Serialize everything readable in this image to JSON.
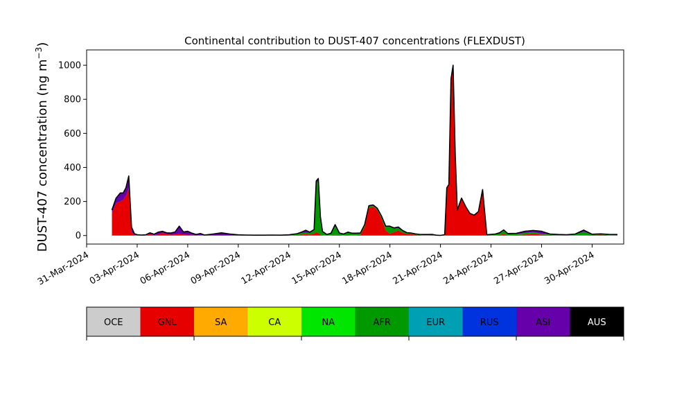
{
  "chart_data": {
    "type": "area",
    "stacked": true,
    "title": "Continental contribution to DUST-407 concentrations (FLEXDUST)",
    "ylabel": "DUST-407 concentration (ng m⁻³)",
    "ylabel_main": "DUST-407 concentration (ng m",
    "ylabel_sup": "−3",
    "ylabel_close": ")",
    "xlabel": "",
    "xlim": [
      "2024-03-31T00:00",
      "2024-05-01T21:00"
    ],
    "ylim": [
      -50,
      1090
    ],
    "yticks": [
      0,
      200,
      400,
      600,
      800,
      1000
    ],
    "xticks": [
      "2024-03-31",
      "2024-04-03",
      "2024-04-06",
      "2024-04-09",
      "2024-04-12",
      "2024-04-15",
      "2024-04-18",
      "2024-04-21",
      "2024-04-24",
      "2024-04-27",
      "2024-04-30"
    ],
    "xtick_labels": [
      "31-Mar-2024",
      "03-Apr-2024",
      "06-Apr-2024",
      "09-Apr-2024",
      "12-Apr-2024",
      "15-Apr-2024",
      "18-Apr-2024",
      "21-Apr-2024",
      "24-Apr-2024",
      "27-Apr-2024",
      "30-Apr-2024"
    ],
    "grid": false,
    "legend": "colorbar-below",
    "x": [
      "2024-04-01T12:00",
      "2024-04-01T18:00",
      "2024-04-02T00:00",
      "2024-04-02T04:00",
      "2024-04-02T08:00",
      "2024-04-02T12:00",
      "2024-04-02T16:00",
      "2024-04-02T20:00",
      "2024-04-03T00:00",
      "2024-04-03T06:00",
      "2024-04-03T12:00",
      "2024-04-03T18:00",
      "2024-04-04T00:00",
      "2024-04-04T06:00",
      "2024-04-04T12:00",
      "2024-04-04T18:00",
      "2024-04-05T00:00",
      "2024-04-05T06:00",
      "2024-04-05T12:00",
      "2024-04-05T18:00",
      "2024-04-06T00:00",
      "2024-04-06T06:00",
      "2024-04-06T12:00",
      "2024-04-06T18:00",
      "2024-04-07T00:00",
      "2024-04-07T12:00",
      "2024-04-08T00:00",
      "2024-04-08T12:00",
      "2024-04-09T00:00",
      "2024-04-09T12:00",
      "2024-04-10T00:00",
      "2024-04-10T12:00",
      "2024-04-11T00:00",
      "2024-04-11T12:00",
      "2024-04-12T00:00",
      "2024-04-12T12:00",
      "2024-04-12T18:00",
      "2024-04-13T00:00",
      "2024-04-13T06:00",
      "2024-04-13T12:00",
      "2024-04-13T15:00",
      "2024-04-13T18:00",
      "2024-04-13T21:00",
      "2024-04-14T00:00",
      "2024-04-14T06:00",
      "2024-04-14T12:00",
      "2024-04-14T18:00",
      "2024-04-15T00:00",
      "2024-04-15T06:00",
      "2024-04-15T12:00",
      "2024-04-15T18:00",
      "2024-04-16T00:00",
      "2024-04-16T06:00",
      "2024-04-16T12:00",
      "2024-04-16T18:00",
      "2024-04-17T00:00",
      "2024-04-17T06:00",
      "2024-04-17T12:00",
      "2024-04-17T18:00",
      "2024-04-18T00:00",
      "2024-04-18T06:00",
      "2024-04-18T12:00",
      "2024-04-18T18:00",
      "2024-04-19T00:00",
      "2024-04-19T06:00",
      "2024-04-19T12:00",
      "2024-04-19T18:00",
      "2024-04-20T00:00",
      "2024-04-20T06:00",
      "2024-04-20T12:00",
      "2024-04-20T18:00",
      "2024-04-21T00:00",
      "2024-04-21T06:00",
      "2024-04-21T09:00",
      "2024-04-21T12:00",
      "2024-04-21T15:00",
      "2024-04-21T18:00",
      "2024-04-21T21:00",
      "2024-04-22T00:00",
      "2024-04-22T06:00",
      "2024-04-22T12:00",
      "2024-04-22T18:00",
      "2024-04-23T00:00",
      "2024-04-23T06:00",
      "2024-04-23T12:00",
      "2024-04-23T18:00",
      "2024-04-24T00:00",
      "2024-04-24T06:00",
      "2024-04-24T12:00",
      "2024-04-24T18:00",
      "2024-04-25T00:00",
      "2024-04-25T12:00",
      "2024-04-26T00:00",
      "2024-04-26T12:00",
      "2024-04-27T00:00",
      "2024-04-27T12:00",
      "2024-04-28T00:00",
      "2024-04-28T12:00",
      "2024-04-29T00:00",
      "2024-04-29T12:00",
      "2024-04-30T00:00",
      "2024-04-30T12:00",
      "2024-05-01T00:00",
      "2024-05-01T12:00"
    ],
    "series": [
      {
        "name": "OCE",
        "color": "#cccccc",
        "values": [
          0,
          0,
          0,
          0,
          0,
          0,
          0,
          0,
          0,
          0,
          0,
          0,
          0,
          0,
          0,
          0,
          0,
          0,
          0,
          0,
          0,
          0,
          0,
          0,
          0,
          0,
          0,
          0,
          0,
          0,
          0,
          0,
          0,
          0,
          0,
          0,
          0,
          0,
          0,
          0,
          0,
          0,
          0,
          0,
          0,
          0,
          0,
          0,
          0,
          0,
          0,
          0,
          0,
          0,
          0,
          0,
          0,
          0,
          0,
          0,
          0,
          0,
          0,
          0,
          0,
          0,
          0,
          0,
          0,
          0,
          0,
          0,
          0,
          0,
          0,
          0,
          0,
          0,
          0,
          0,
          0,
          0,
          0,
          0,
          0,
          0,
          0,
          0,
          0,
          0,
          0,
          0,
          0,
          0,
          0,
          0,
          0,
          0,
          0,
          0,
          0,
          0,
          0,
          0
        ]
      },
      {
        "name": "GNL",
        "color": "#e60000",
        "values": [
          130,
          190,
          200,
          210,
          230,
          280,
          20,
          3,
          2,
          1,
          2,
          8,
          3,
          5,
          15,
          8,
          5,
          6,
          10,
          6,
          5,
          4,
          3,
          2,
          1,
          1,
          1,
          1,
          1,
          1,
          1,
          1,
          1,
          1,
          2,
          3,
          5,
          8,
          5,
          10,
          20,
          15,
          5,
          2,
          1,
          2,
          4,
          3,
          2,
          3,
          2,
          2,
          4,
          50,
          160,
          170,
          150,
          100,
          30,
          10,
          20,
          30,
          15,
          10,
          8,
          5,
          3,
          2,
          2,
          3,
          2,
          1,
          5,
          280,
          300,
          920,
          1000,
          480,
          150,
          220,
          170,
          130,
          120,
          140,
          270,
          5,
          2,
          2,
          3,
          8,
          2,
          3,
          5,
          10,
          5,
          3,
          2,
          1,
          2,
          2,
          3,
          5,
          2,
          1
        ]
      },
      {
        "name": "SA",
        "color": "#ffaa00",
        "values": [
          0,
          0,
          0,
          0,
          0,
          0,
          0,
          0,
          0,
          0,
          0,
          0,
          0,
          0,
          0,
          0,
          0,
          0,
          0,
          0,
          0,
          0,
          0,
          0,
          0,
          0,
          0,
          0,
          0,
          0,
          0,
          0,
          0,
          0,
          0,
          0,
          0,
          0,
          0,
          0,
          0,
          0,
          0,
          0,
          0,
          0,
          0,
          0,
          0,
          0,
          0,
          0,
          0,
          0,
          0,
          0,
          0,
          0,
          0,
          0,
          0,
          0,
          0,
          0,
          0,
          0,
          0,
          0,
          0,
          0,
          0,
          0,
          0,
          0,
          0,
          0,
          0,
          0,
          0,
          0,
          0,
          0,
          0,
          0,
          0,
          0,
          0,
          0,
          0,
          0,
          0,
          0,
          0,
          0,
          0,
          0,
          0,
          0,
          0,
          0,
          0,
          0,
          0,
          0
        ]
      },
      {
        "name": "CA",
        "color": "#ccff00",
        "values": [
          0,
          0,
          0,
          0,
          0,
          0,
          0,
          0,
          0,
          0,
          0,
          0,
          0,
          0,
          0,
          0,
          0,
          0,
          0,
          0,
          0,
          0,
          0,
          0,
          0,
          0,
          0,
          0,
          0,
          0,
          0,
          0,
          0,
          0,
          0,
          0,
          0,
          0,
          0,
          0,
          0,
          0,
          0,
          0,
          0,
          0,
          0,
          0,
          0,
          0,
          0,
          0,
          0,
          0,
          0,
          0,
          0,
          0,
          0,
          0,
          0,
          0,
          0,
          0,
          0,
          0,
          0,
          0,
          0,
          0,
          0,
          0,
          0,
          0,
          0,
          0,
          0,
          0,
          0,
          0,
          0,
          0,
          0,
          0,
          0,
          0,
          0,
          0,
          0,
          0,
          0,
          0,
          0,
          0,
          0,
          0,
          0,
          0,
          0,
          0,
          0,
          0,
          0,
          0
        ]
      },
      {
        "name": "NA",
        "color": "#00e600",
        "values": [
          0,
          0,
          0,
          0,
          0,
          0,
          0,
          0,
          0,
          0,
          0,
          0,
          0,
          0,
          0,
          0,
          0,
          0,
          0,
          0,
          0,
          0,
          0,
          0,
          0,
          0,
          0,
          0,
          0,
          0,
          0,
          0,
          0,
          0,
          0,
          0,
          0,
          0,
          0,
          0,
          0,
          0,
          0,
          0,
          0,
          0,
          0,
          0,
          0,
          0,
          0,
          0,
          0,
          0,
          0,
          0,
          0,
          0,
          0,
          0,
          0,
          0,
          0,
          0,
          0,
          0,
          0,
          0,
          0,
          0,
          0,
          0,
          0,
          0,
          0,
          0,
          0,
          0,
          0,
          0,
          0,
          0,
          0,
          0,
          0,
          0,
          0,
          0,
          0,
          0,
          0,
          0,
          0,
          0,
          0,
          0,
          0,
          0,
          0,
          0,
          0,
          0,
          0,
          0
        ]
      },
      {
        "name": "AFR",
        "color": "#009900",
        "values": [
          0,
          0,
          0,
          0,
          0,
          0,
          0,
          0,
          0,
          0,
          0,
          0,
          0,
          0,
          0,
          0,
          0,
          0,
          0,
          0,
          0,
          0,
          0,
          0,
          0,
          0,
          0,
          0,
          0,
          0,
          0,
          0,
          0,
          0,
          0,
          5,
          10,
          8,
          10,
          20,
          280,
          310,
          100,
          20,
          5,
          10,
          50,
          10,
          5,
          15,
          10,
          10,
          8,
          10,
          10,
          5,
          5,
          10,
          20,
          40,
          20,
          15,
          10,
          5,
          5,
          3,
          2,
          2,
          2,
          2,
          0,
          0,
          0,
          0,
          0,
          0,
          0,
          0,
          0,
          0,
          0,
          0,
          0,
          0,
          0,
          0,
          3,
          5,
          8,
          20,
          5,
          5,
          10,
          10,
          5,
          3,
          2,
          2,
          5,
          20,
          3,
          3,
          3,
          3
        ]
      },
      {
        "name": "EUR",
        "color": "#00a0b4",
        "values": [
          0,
          0,
          0,
          0,
          0,
          0,
          0,
          0,
          0,
          0,
          0,
          0,
          0,
          0,
          0,
          0,
          0,
          0,
          0,
          0,
          0,
          0,
          0,
          0,
          0,
          0,
          0,
          0,
          0,
          0,
          0,
          0,
          0,
          0,
          0,
          0,
          0,
          0,
          0,
          0,
          0,
          0,
          0,
          0,
          0,
          0,
          0,
          0,
          0,
          0,
          0,
          0,
          0,
          0,
          0,
          0,
          0,
          0,
          0,
          0,
          0,
          0,
          0,
          0,
          0,
          0,
          0,
          0,
          0,
          0,
          0,
          0,
          0,
          0,
          0,
          0,
          0,
          0,
          0,
          0,
          0,
          0,
          0,
          0,
          0,
          0,
          0,
          0,
          0,
          0,
          0,
          0,
          0,
          0,
          0,
          0,
          0,
          0,
          0,
          0,
          0,
          0,
          0,
          0
        ]
      },
      {
        "name": "RUS",
        "color": "#0033dd",
        "values": [
          0,
          0,
          0,
          0,
          0,
          0,
          0,
          0,
          0,
          0,
          0,
          0,
          0,
          0,
          0,
          0,
          0,
          0,
          0,
          0,
          0,
          0,
          0,
          0,
          0,
          0,
          0,
          0,
          0,
          0,
          0,
          0,
          0,
          0,
          0,
          0,
          0,
          0,
          0,
          0,
          0,
          0,
          0,
          0,
          0,
          0,
          0,
          0,
          0,
          0,
          0,
          0,
          0,
          0,
          0,
          0,
          0,
          0,
          0,
          0,
          0,
          0,
          0,
          0,
          0,
          0,
          0,
          0,
          0,
          0,
          0,
          0,
          0,
          0,
          0,
          0,
          0,
          0,
          0,
          0,
          0,
          0,
          0,
          0,
          0,
          0,
          0,
          0,
          0,
          0,
          0,
          0,
          0,
          0,
          0,
          0,
          0,
          0,
          0,
          0,
          0,
          0,
          0,
          0
        ]
      },
      {
        "name": "ASI",
        "color": "#6600aa",
        "values": [
          20,
          30,
          50,
          40,
          50,
          70,
          30,
          8,
          3,
          2,
          2,
          8,
          5,
          15,
          10,
          8,
          10,
          15,
          45,
          15,
          20,
          10,
          3,
          10,
          2,
          8,
          15,
          8,
          3,
          2,
          1,
          1,
          2,
          1,
          2,
          3,
          5,
          15,
          5,
          5,
          20,
          10,
          5,
          2,
          1,
          1,
          10,
          2,
          2,
          2,
          2,
          2,
          3,
          5,
          5,
          5,
          5,
          5,
          5,
          5,
          5,
          5,
          5,
          2,
          2,
          2,
          2,
          2,
          2,
          2,
          0,
          0,
          0,
          0,
          0,
          0,
          0,
          0,
          0,
          0,
          0,
          0,
          0,
          0,
          0,
          0,
          2,
          2,
          5,
          5,
          5,
          5,
          10,
          10,
          15,
          3,
          2,
          2,
          2,
          10,
          2,
          2,
          2,
          2
        ]
      },
      {
        "name": "AUS",
        "color": "#000000",
        "values": [
          0,
          0,
          0,
          0,
          0,
          0,
          0,
          0,
          0,
          0,
          0,
          0,
          0,
          0,
          0,
          0,
          0,
          0,
          0,
          0,
          0,
          0,
          0,
          0,
          0,
          0,
          0,
          0,
          0,
          0,
          0,
          0,
          0,
          0,
          0,
          0,
          0,
          0,
          0,
          0,
          0,
          0,
          0,
          0,
          0,
          0,
          0,
          0,
          0,
          0,
          0,
          0,
          0,
          0,
          0,
          0,
          0,
          0,
          0,
          0,
          0,
          0,
          0,
          0,
          0,
          0,
          0,
          0,
          0,
          0,
          0,
          0,
          0,
          0,
          0,
          0,
          0,
          0,
          0,
          0,
          0,
          0,
          0,
          0,
          0,
          0,
          0,
          0,
          0,
          0,
          0,
          0,
          0,
          0,
          0,
          0,
          0,
          0,
          0,
          0,
          0,
          0,
          0,
          0
        ]
      }
    ],
    "total_line_color": "#000000",
    "legend_entries": [
      {
        "label": "OCE",
        "color": "#cccccc",
        "text_color": "#000000"
      },
      {
        "label": "GNL",
        "color": "#e60000",
        "text_color": "#000000"
      },
      {
        "label": "SA",
        "color": "#ffaa00",
        "text_color": "#000000"
      },
      {
        "label": "CA",
        "color": "#ccff00",
        "text_color": "#000000"
      },
      {
        "label": "NA",
        "color": "#00e600",
        "text_color": "#000000"
      },
      {
        "label": "AFR",
        "color": "#009900",
        "text_color": "#000000"
      },
      {
        "label": "EUR",
        "color": "#00a0b4",
        "text_color": "#000000"
      },
      {
        "label": "RUS",
        "color": "#0033dd",
        "text_color": "#000000"
      },
      {
        "label": "ASI",
        "color": "#6600aa",
        "text_color": "#000000"
      },
      {
        "label": "AUS",
        "color": "#000000",
        "text_color": "#ffffff"
      }
    ]
  }
}
